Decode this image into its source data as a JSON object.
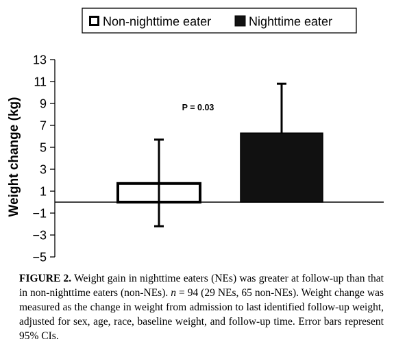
{
  "chart_data": {
    "type": "bar",
    "categories": [
      "Non-nighttime eater",
      "Nighttime eater"
    ],
    "series": [
      {
        "name": "Non-nighttime eater",
        "value": 1.7,
        "ci_low": -2.2,
        "ci_high": 5.7,
        "fill": "#ffffff"
      },
      {
        "name": "Nighttime eater",
        "value": 6.3,
        "ci_low": 6.3,
        "ci_high": 10.8,
        "fill": "#111111"
      }
    ],
    "ylabel": "Weight change (kg)",
    "ylim": [
      -5,
      13
    ],
    "yticks": [
      "13",
      "11",
      "9",
      "7",
      "5",
      "3",
      "1",
      "−1",
      "−3",
      "−5"
    ],
    "annotation": "P = 0.03",
    "legend_position": "top",
    "grid": false
  },
  "caption": {
    "label": "FIGURE 2.",
    "part1": "Weight gain in nighttime eaters (NEs) was greater at follow-up than that in non-nighttime eaters (non-NEs).",
    "n_var": "n",
    "part2": "= 94 (29 NEs, 65 non-NEs). Weight change was measured as the change in weight from admission to last identified follow-up weight, adjusted for sex, age, race, baseline weight, and follow-up time. Error bars represent 95% CIs."
  }
}
